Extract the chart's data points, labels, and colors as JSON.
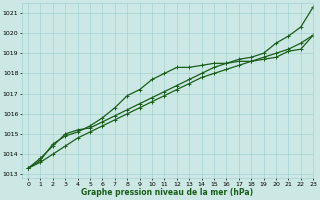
{
  "title": "Graphe pression niveau de la mer (hPa)",
  "bg_color": "#cce8e4",
  "grid_color": "#99cccc",
  "line_color": "#1a5e1a",
  "xlim": [
    -0.5,
    23
  ],
  "ylim": [
    1012.8,
    1021.5
  ],
  "yticks": [
    1013,
    1014,
    1015,
    1016,
    1017,
    1018,
    1019,
    1020,
    1021
  ],
  "xticks": [
    0,
    1,
    2,
    3,
    4,
    5,
    6,
    7,
    8,
    9,
    10,
    11,
    12,
    13,
    14,
    15,
    16,
    17,
    18,
    19,
    20,
    21,
    22,
    23
  ],
  "series1_straight": {
    "x": [
      0,
      1,
      2,
      3,
      4,
      5,
      6,
      7,
      8,
      9,
      10,
      11,
      12,
      13,
      14,
      15,
      16,
      17,
      18,
      19,
      20,
      21,
      22,
      23
    ],
    "y": [
      1013.3,
      1013.6,
      1014.0,
      1014.4,
      1014.8,
      1015.1,
      1015.4,
      1015.7,
      1016.0,
      1016.3,
      1016.6,
      1016.9,
      1017.2,
      1017.5,
      1017.8,
      1018.0,
      1018.2,
      1018.4,
      1018.6,
      1018.8,
      1019.0,
      1019.2,
      1019.5,
      1019.9
    ]
  },
  "series2_upper": {
    "x": [
      0,
      1,
      2,
      3,
      4,
      5,
      6,
      7,
      8,
      9,
      10,
      11,
      12,
      13,
      14,
      15,
      16,
      17,
      18,
      19,
      20,
      21,
      22,
      23
    ],
    "y": [
      1013.3,
      1013.7,
      1014.5,
      1014.9,
      1015.1,
      1015.4,
      1015.8,
      1016.3,
      1016.9,
      1017.2,
      1017.7,
      1018.0,
      1018.3,
      1018.3,
      1018.4,
      1018.5,
      1018.5,
      1018.6,
      1018.6,
      1018.7,
      1018.8,
      1019.1,
      1019.2,
      1019.9
    ]
  },
  "series3_high_end": {
    "x": [
      0,
      1,
      2,
      3,
      4,
      5,
      6,
      7,
      8,
      9,
      10,
      11,
      12,
      13,
      14,
      15,
      16,
      17,
      18,
      19,
      20,
      21,
      22,
      23
    ],
    "y": [
      1013.3,
      1013.8,
      1014.4,
      1015.0,
      1015.2,
      1015.3,
      1015.6,
      1015.9,
      1016.2,
      1016.5,
      1016.8,
      1017.1,
      1017.4,
      1017.7,
      1018.0,
      1018.3,
      1018.5,
      1018.7,
      1018.8,
      1019.0,
      1019.5,
      1019.85,
      1020.3,
      1021.3
    ]
  }
}
